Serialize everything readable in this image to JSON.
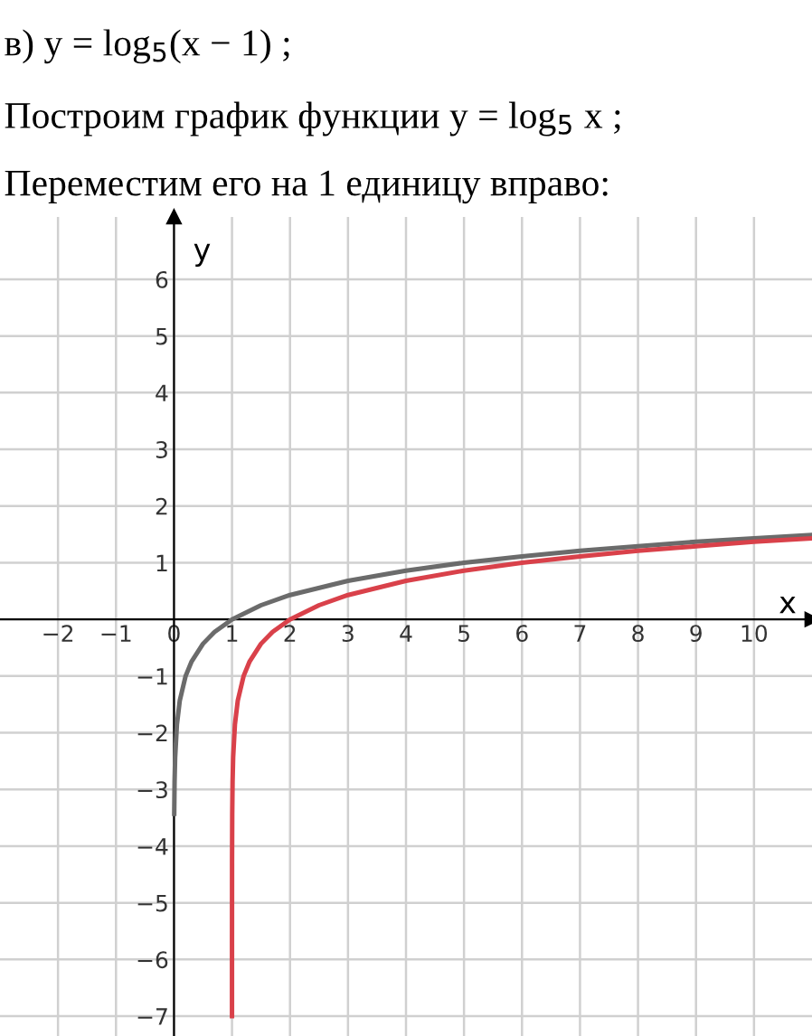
{
  "chart_data": {
    "type": "line",
    "title": "в) y = log$_{5}$(x − 1) ;",
    "subtitle": "Построим график функции y = log$_{5}$ x ;",
    "annotations": [
      "Переместим его на 1 единицу вправо:"
    ],
    "xlabel": "x",
    "ylabel": "y",
    "series": [
      {
        "color": "#6b6b6b",
        "x": [
          0.004,
          0.01,
          0.02,
          0.05,
          0.1,
          0.2,
          0.3,
          0.5,
          0.7,
          1,
          1.5,
          2,
          3,
          4,
          5,
          6,
          7,
          8,
          9,
          10,
          11
        ],
        "values": [
          -3.43,
          -2.86,
          -2.43,
          -1.86,
          -1.43,
          -1,
          -0.75,
          -0.43,
          -0.22,
          0,
          0.25,
          0.43,
          0.68,
          0.86,
          1,
          1.11,
          1.21,
          1.29,
          1.37,
          1.43,
          1.49
        ]
      },
      {
        "color": "#d9414a",
        "x": [
          1.000013,
          1.0001,
          1.001,
          1.004,
          1.01,
          1.02,
          1.05,
          1.1,
          1.2,
          1.3,
          1.5,
          1.7,
          2,
          2.5,
          3,
          4,
          5,
          6,
          7,
          8,
          9,
          10,
          11
        ],
        "values": [
          -7.0,
          -5.72,
          -4.29,
          -3.43,
          -2.86,
          -2.43,
          -1.86,
          -1.43,
          -1,
          -0.75,
          -0.43,
          -0.22,
          0,
          0.25,
          0.43,
          0.68,
          0.86,
          1,
          1.11,
          1.21,
          1.29,
          1.37,
          1.43
        ]
      }
    ],
    "xlim": [
      -3,
      11
    ],
    "ylim": [
      -7.35,
      7.1
    ],
    "xticks": [
      -2,
      -1,
      {
        "value": 0,
        "label": "0"
      },
      1,
      2,
      3,
      4,
      5,
      6,
      7,
      8,
      9,
      10
    ],
    "yticks": [
      -7,
      -6,
      -5,
      -4,
      -3,
      -2,
      -1,
      1,
      2,
      3,
      4,
      5,
      6
    ],
    "grid": true,
    "marker": "none",
    "line_style": "solid",
    "legend": false
  }
}
